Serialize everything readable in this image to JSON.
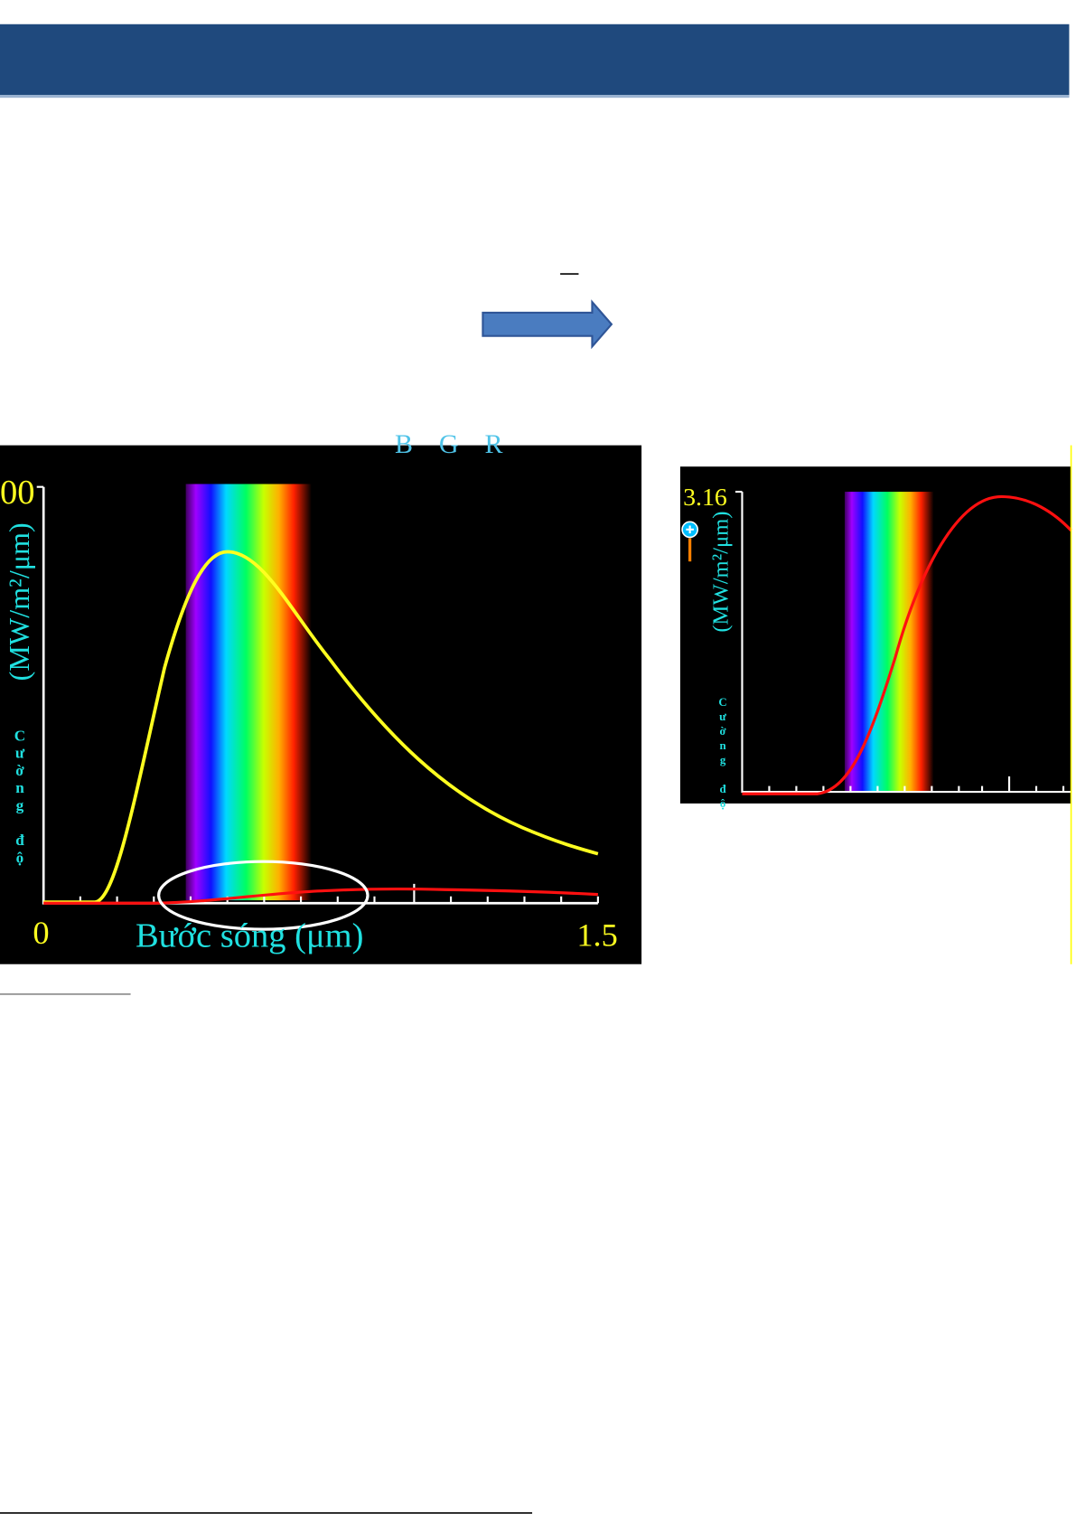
{
  "figure_left": {
    "top_label": "B G R",
    "y_max": "00",
    "y_unit": "(MW/m²/μm)",
    "y_title": "Cường độ",
    "x_min": "0",
    "x_title": "Bước sóng (μm)",
    "x_max": "1.5"
  },
  "figure_right": {
    "y_max": "3.16",
    "y_unit": "(MW/m²/μm)",
    "y_title": "Cường độ"
  }
}
